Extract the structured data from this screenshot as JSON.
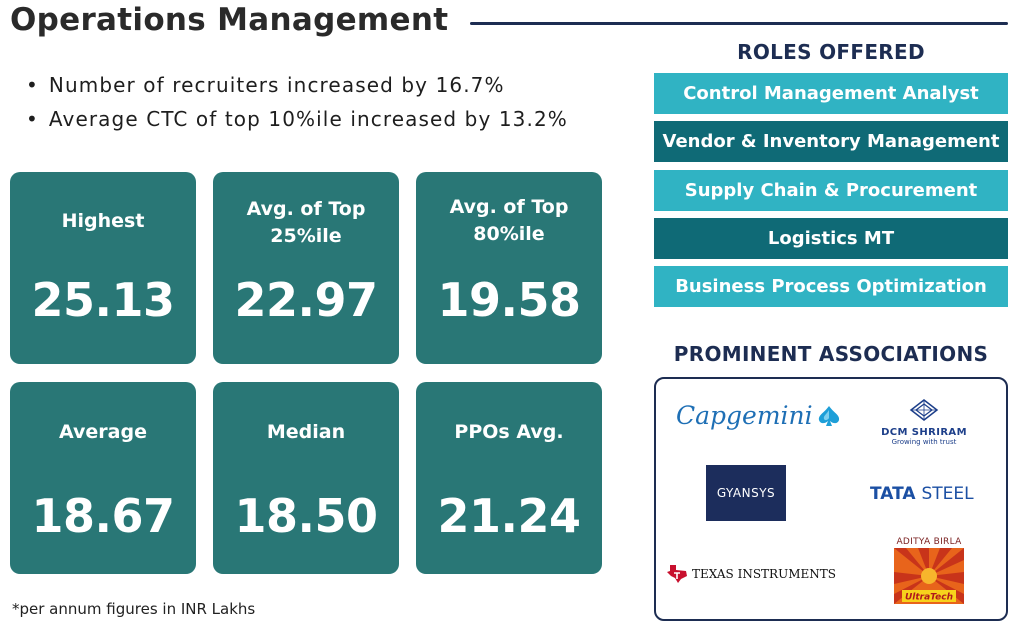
{
  "header": {
    "title": "Operations Management"
  },
  "highlights": [
    "Number of recruiters increased by 16.7%",
    "Average CTC of top 10%ile increased by 13.2%"
  ],
  "stats": {
    "highest": {
      "label": "Highest",
      "value": "25.13"
    },
    "top25": {
      "label_line1": "Avg. of Top",
      "label_line2": "25%ile",
      "value": "22.97"
    },
    "top80": {
      "label_line1": "Avg. of Top",
      "label_line2": "80%ile",
      "value": "19.58"
    },
    "average": {
      "label": "Average",
      "value": "18.67"
    },
    "median": {
      "label": "Median",
      "value": "18.50"
    },
    "ppo": {
      "label": "PPOs Avg.",
      "value": "21.24"
    }
  },
  "footnote": "*per annum figures in INR Lakhs",
  "roles": {
    "heading": "ROLES OFFERED",
    "items": [
      "Control Management Analyst",
      "Vendor & Inventory Management",
      "Supply Chain & Procurement",
      "Logistics MT",
      "Business Process Optimization"
    ]
  },
  "associations": {
    "heading": "PROMINENT ASSOCIATIONS",
    "logos": {
      "capgemini": "Capgemini",
      "dcm_name": "DCM SHRIRAM",
      "dcm_tagline": "Growing with trust",
      "gyansys": "GYANSYS",
      "tata": "TATA",
      "tata_steel": "STEEL",
      "ti": "TEXAS INSTRUMENTS",
      "ab_name": "ADITYA BIRLA",
      "ab_brand": "UltraTech"
    }
  },
  "colors": {
    "card": "#297776",
    "role_light": "#30b3c3",
    "role_dark": "#0f6a76",
    "navy": "#1d2d52"
  }
}
